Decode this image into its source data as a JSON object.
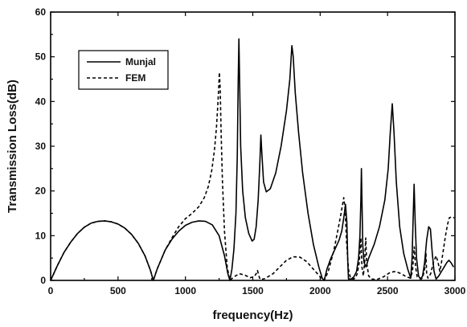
{
  "chart_data": {
    "type": "line",
    "title": "",
    "xlabel": "frequency(Hz)",
    "ylabel": "Transmission Loss(dB)",
    "xlim": [
      0,
      3000
    ],
    "ylim": [
      0,
      60
    ],
    "xticks": [
      0,
      500,
      1000,
      1500,
      2000,
      2500,
      3000
    ],
    "yticks": [
      0,
      10,
      20,
      30,
      40,
      50,
      60
    ],
    "grid": false,
    "legend_position": "top-left",
    "series": [
      {
        "name": "Munjal",
        "style": "solid",
        "color": "#000000",
        "points": [
          [
            0,
            0
          ],
          [
            50,
            3.3
          ],
          [
            100,
            6.3
          ],
          [
            150,
            8.6
          ],
          [
            200,
            10.5
          ],
          [
            250,
            11.9
          ],
          [
            300,
            12.8
          ],
          [
            350,
            13.2
          ],
          [
            400,
            13.3
          ],
          [
            450,
            13.1
          ],
          [
            500,
            12.6
          ],
          [
            550,
            11.7
          ],
          [
            600,
            10.3
          ],
          [
            650,
            8.3
          ],
          [
            700,
            5.5
          ],
          [
            740,
            2.3
          ],
          [
            762,
            0
          ],
          [
            790,
            2.5
          ],
          [
            850,
            6.8
          ],
          [
            900,
            9.2
          ],
          [
            950,
            11.0
          ],
          [
            1000,
            12.3
          ],
          [
            1050,
            13.0
          ],
          [
            1100,
            13.3
          ],
          [
            1150,
            13.2
          ],
          [
            1200,
            12.4
          ],
          [
            1250,
            10.0
          ],
          [
            1290,
            5.5
          ],
          [
            1315,
            1.5
          ],
          [
            1330,
            0
          ],
          [
            1345,
            2.5
          ],
          [
            1360,
            7.0
          ],
          [
            1375,
            15.0
          ],
          [
            1385,
            28.0
          ],
          [
            1392,
            45.0
          ],
          [
            1397,
            54.0
          ],
          [
            1402,
            45.0
          ],
          [
            1410,
            30.0
          ],
          [
            1425,
            20.0
          ],
          [
            1445,
            14.0
          ],
          [
            1470,
            10.5
          ],
          [
            1495,
            8.8
          ],
          [
            1510,
            9.2
          ],
          [
            1525,
            12.0
          ],
          [
            1540,
            18.0
          ],
          [
            1552,
            26.0
          ],
          [
            1560,
            32.5
          ],
          [
            1568,
            28.0
          ],
          [
            1580,
            22.0
          ],
          [
            1600,
            19.8
          ],
          [
            1630,
            20.5
          ],
          [
            1670,
            24.0
          ],
          [
            1710,
            30.0
          ],
          [
            1750,
            38.0
          ],
          [
            1775,
            45.0
          ],
          [
            1790,
            52.5
          ],
          [
            1800,
            50.0
          ],
          [
            1815,
            42.0
          ],
          [
            1840,
            33.0
          ],
          [
            1870,
            24.0
          ],
          [
            1910,
            15.0
          ],
          [
            1950,
            8.0
          ],
          [
            1990,
            3.0
          ],
          [
            2015,
            0.5
          ],
          [
            2030,
            0
          ],
          [
            2050,
            2.5
          ],
          [
            2080,
            5.0
          ],
          [
            2110,
            7.0
          ],
          [
            2140,
            9.0
          ],
          [
            2160,
            11.0
          ],
          [
            2175,
            14.0
          ],
          [
            2188,
            17.0
          ],
          [
            2198,
            13.0
          ],
          [
            2205,
            4.0
          ],
          [
            2210,
            0.3
          ],
          [
            2230,
            0.3
          ],
          [
            2250,
            0.8
          ],
          [
            2270,
            2.0
          ],
          [
            2285,
            5.0
          ],
          [
            2295,
            10.0
          ],
          [
            2302,
            18.0
          ],
          [
            2306,
            25.0
          ],
          [
            2310,
            18.0
          ],
          [
            2316,
            8.0
          ],
          [
            2325,
            4.0
          ],
          [
            2340,
            3.0
          ],
          [
            2360,
            5.0
          ],
          [
            2400,
            8.0
          ],
          [
            2440,
            12.0
          ],
          [
            2480,
            18.0
          ],
          [
            2505,
            25.0
          ],
          [
            2520,
            33.0
          ],
          [
            2535,
            39.5
          ],
          [
            2548,
            33.0
          ],
          [
            2565,
            22.0
          ],
          [
            2590,
            12.0
          ],
          [
            2620,
            6.0
          ],
          [
            2650,
            2.5
          ],
          [
            2672,
            0.5
          ],
          [
            2682,
            5.0
          ],
          [
            2690,
            14.0
          ],
          [
            2697,
            21.5
          ],
          [
            2705,
            13.0
          ],
          [
            2715,
            5.0
          ],
          [
            2730,
            1.0
          ],
          [
            2745,
            0.3
          ],
          [
            2760,
            1.0
          ],
          [
            2775,
            4.0
          ],
          [
            2790,
            9.0
          ],
          [
            2805,
            12.0
          ],
          [
            2818,
            11.5
          ],
          [
            2832,
            6.0
          ],
          [
            2845,
            2.0
          ],
          [
            2860,
            0.3
          ],
          [
            2880,
            1.0
          ],
          [
            2900,
            2.0
          ],
          [
            2920,
            3.0
          ],
          [
            2940,
            4.0
          ],
          [
            2955,
            4.5
          ],
          [
            2970,
            4.0
          ],
          [
            2990,
            3.0
          ]
        ]
      },
      {
        "name": "FEM",
        "style": "dashed",
        "color": "#000000",
        "points": [
          [
            0,
            0
          ],
          [
            50,
            3.3
          ],
          [
            100,
            6.3
          ],
          [
            150,
            8.6
          ],
          [
            200,
            10.5
          ],
          [
            250,
            11.9
          ],
          [
            300,
            12.8
          ],
          [
            350,
            13.2
          ],
          [
            400,
            13.3
          ],
          [
            450,
            13.1
          ],
          [
            500,
            12.6
          ],
          [
            550,
            11.7
          ],
          [
            600,
            10.3
          ],
          [
            650,
            8.3
          ],
          [
            700,
            5.5
          ],
          [
            740,
            2.3
          ],
          [
            762,
            0
          ],
          [
            790,
            2.5
          ],
          [
            850,
            6.8
          ],
          [
            900,
            9.5
          ],
          [
            950,
            12.0
          ],
          [
            1000,
            13.8
          ],
          [
            1050,
            15.0
          ],
          [
            1100,
            16.5
          ],
          [
            1140,
            18.5
          ],
          [
            1170,
            21.0
          ],
          [
            1195,
            24.5
          ],
          [
            1215,
            29.0
          ],
          [
            1230,
            34.0
          ],
          [
            1240,
            39.0
          ],
          [
            1247,
            43.0
          ],
          [
            1252,
            46.5
          ],
          [
            1258,
            43.0
          ],
          [
            1265,
            33.0
          ],
          [
            1275,
            22.0
          ],
          [
            1290,
            11.0
          ],
          [
            1310,
            3.0
          ],
          [
            1330,
            0
          ],
          [
            1360,
            0.8
          ],
          [
            1400,
            1.5
          ],
          [
            1440,
            1.2
          ],
          [
            1480,
            0.6
          ],
          [
            1510,
            0.8
          ],
          [
            1525,
            1.5
          ],
          [
            1535,
            2.2
          ],
          [
            1545,
            1.0
          ],
          [
            1555,
            0.2
          ],
          [
            1590,
            0.4
          ],
          [
            1650,
            1.5
          ],
          [
            1700,
            3.0
          ],
          [
            1750,
            4.5
          ],
          [
            1800,
            5.3
          ],
          [
            1850,
            5.2
          ],
          [
            1900,
            4.2
          ],
          [
            1950,
            2.5
          ],
          [
            2000,
            0.8
          ],
          [
            2030,
            0
          ],
          [
            2060,
            2.0
          ],
          [
            2100,
            6.5
          ],
          [
            2130,
            11.0
          ],
          [
            2155,
            15.0
          ],
          [
            2175,
            18.5
          ],
          [
            2185,
            16.0
          ],
          [
            2195,
            9.0
          ],
          [
            2210,
            2.5
          ],
          [
            2225,
            0.5
          ],
          [
            2240,
            0.3
          ],
          [
            2260,
            0.5
          ],
          [
            2275,
            1.5
          ],
          [
            2290,
            4.0
          ],
          [
            2302,
            9.5
          ],
          [
            2310,
            3.0
          ],
          [
            2320,
            1.0
          ],
          [
            2330,
            4.0
          ],
          [
            2338,
            9.5
          ],
          [
            2345,
            4.0
          ],
          [
            2360,
            1.0
          ],
          [
            2380,
            0.3
          ],
          [
            2420,
            0.2
          ],
          [
            2470,
            0.8
          ],
          [
            2520,
            1.8
          ],
          [
            2560,
            2.0
          ],
          [
            2600,
            1.5
          ],
          [
            2640,
            0.8
          ],
          [
            2670,
            0.5
          ],
          [
            2685,
            2.0
          ],
          [
            2698,
            7.5
          ],
          [
            2708,
            3.0
          ],
          [
            2720,
            0.8
          ],
          [
            2740,
            0.4
          ],
          [
            2760,
            0.5
          ],
          [
            2775,
            2.5
          ],
          [
            2785,
            6.0
          ],
          [
            2790,
            1.5
          ],
          [
            2800,
            0.5
          ],
          [
            2820,
            1.5
          ],
          [
            2840,
            4.0
          ],
          [
            2860,
            5.5
          ],
          [
            2875,
            4.0
          ],
          [
            2888,
            2.0
          ],
          [
            2900,
            4.0
          ],
          [
            2915,
            7.0
          ],
          [
            2930,
            10.0
          ],
          [
            2945,
            12.5
          ],
          [
            2958,
            14.0
          ],
          [
            2975,
            14.2
          ],
          [
            2995,
            14.0
          ]
        ]
      }
    ]
  }
}
